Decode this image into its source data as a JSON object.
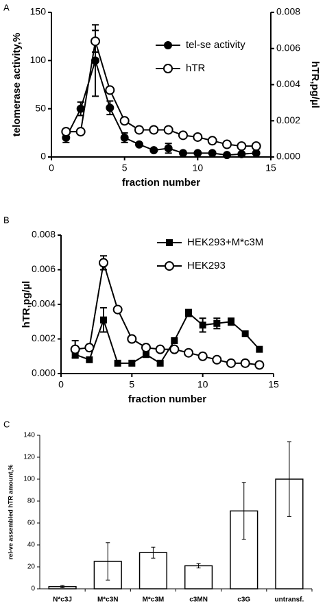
{
  "chart_data": [
    {
      "type": "line",
      "panel": "A",
      "x": [
        1,
        2,
        3,
        4,
        5,
        6,
        7,
        8,
        9,
        10,
        11,
        12,
        13,
        14
      ],
      "xlabel": "fraction number",
      "ylabel": "telomerase activity,%",
      "y2label": "hTR,pg/µl",
      "xlim": [
        0,
        15
      ],
      "xticks": [
        0,
        5,
        10,
        15
      ],
      "ylim": [
        0,
        150
      ],
      "yticks": [
        0,
        50,
        100,
        150
      ],
      "y2lim": [
        0,
        0.008
      ],
      "y2ticks": [
        {
          "value": 0,
          "label": "0.000"
        },
        {
          "value": 0.002,
          "label": "0.002"
        },
        {
          "value": 0.004,
          "label": "0.004"
        },
        {
          "value": 0.006,
          "label": "0.006"
        },
        {
          "value": 0.008,
          "label": "0.008"
        }
      ],
      "legend": "upper right",
      "series": [
        {
          "name": "tel-se activity",
          "color": "#000000",
          "marker": "circle",
          "filled": true,
          "values": [
            20,
            50,
            100,
            51,
            20,
            13,
            7,
            9,
            4,
            4,
            4,
            2,
            3,
            4
          ],
          "errors": [
            5,
            7,
            37,
            7,
            5,
            null,
            null,
            5,
            null,
            null,
            null,
            null,
            null,
            null
          ]
        },
        {
          "name": "hTR",
          "color": "#000000",
          "marker": "circle",
          "filled": false,
          "axis": "y2",
          "values": [
            0.0014,
            0.0014,
            0.0064,
            0.0037,
            0.002,
            0.0015,
            0.0015,
            0.0015,
            0.0012,
            0.0011,
            0.0009,
            0.0007,
            0.0006,
            0.0006
          ],
          "errors": [
            null,
            null,
            0.0006,
            null,
            null,
            null,
            null,
            null,
            null,
            null,
            null,
            null,
            null,
            null
          ]
        }
      ]
    },
    {
      "type": "line",
      "panel": "B",
      "x": [
        1,
        2,
        3,
        4,
        5,
        6,
        7,
        8,
        9,
        10,
        11,
        12,
        13,
        14
      ],
      "xlabel": "fraction number",
      "ylabel": "hTR,pg/µl",
      "xlim": [
        0,
        15
      ],
      "xticks": [
        0,
        5,
        10,
        15
      ],
      "ylim": [
        0,
        0.008
      ],
      "yticks": [
        {
          "value": 0,
          "label": "0.000"
        },
        {
          "value": 0.002,
          "label": "0.002"
        },
        {
          "value": 0.004,
          "label": "0.004"
        },
        {
          "value": 0.006,
          "label": "0.006"
        },
        {
          "value": 0.008,
          "label": "0.008"
        }
      ],
      "legend": "upper right",
      "series": [
        {
          "name": "HEK293+M*c3M",
          "color": "#000000",
          "marker": "square",
          "filled": true,
          "values": [
            0.0011,
            0.0008,
            0.0031,
            0.0006,
            0.0006,
            0.0011,
            0.0006,
            0.0019,
            0.0035,
            0.0028,
            0.0029,
            0.003,
            0.0023,
            0.0014
          ],
          "errors": [
            0.0002,
            null,
            0.0007,
            null,
            null,
            null,
            null,
            null,
            0.0002,
            0.0004,
            0.0003,
            0.0002,
            null,
            null
          ]
        },
        {
          "name": "HEK293",
          "color": "#000000",
          "marker": "circle",
          "filled": false,
          "values": [
            0.0014,
            0.0015,
            0.0064,
            0.0037,
            0.002,
            0.0015,
            0.0014,
            0.0014,
            0.0012,
            0.001,
            0.0008,
            0.0006,
            0.0006,
            0.0005
          ],
          "errors": [
            0.0005,
            null,
            0.0004,
            null,
            null,
            null,
            null,
            null,
            null,
            null,
            null,
            null,
            null,
            null
          ]
        }
      ]
    },
    {
      "type": "bar",
      "panel": "C",
      "ylabel": "rel-ve assembled hTR amount,%",
      "categories": [
        "N*c3J",
        "M*c3N",
        "M*c3M",
        "c3MN",
        "c3G",
        "untransf."
      ],
      "values": [
        2,
        25,
        33,
        21,
        71,
        100
      ],
      "errors": [
        1,
        17,
        5,
        2,
        26,
        34
      ],
      "color": "#ffffff",
      "ylim": [
        0,
        140
      ],
      "yticks": [
        0,
        20,
        40,
        60,
        80,
        100,
        120,
        140
      ]
    }
  ]
}
